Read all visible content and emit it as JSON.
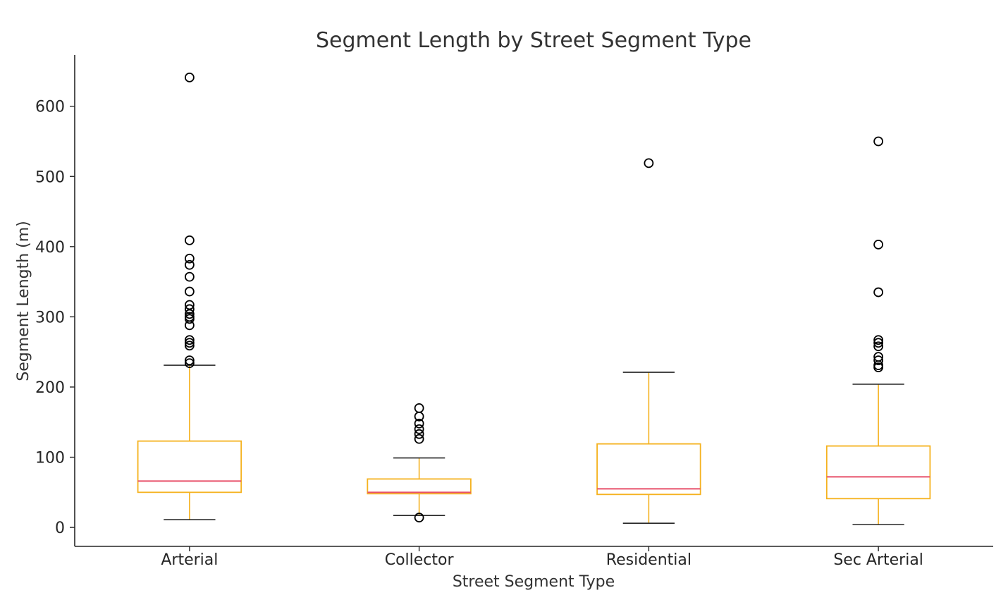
{
  "chart_data": {
    "type": "box",
    "title": "Segment Length by Street Segment Type",
    "xlabel": "Street Segment Type",
    "ylabel": "Segment Length (m)",
    "ylim": [
      -27,
      673
    ],
    "yticks": [
      0,
      100,
      200,
      300,
      400,
      500,
      600
    ],
    "grid": false,
    "colors": {
      "box": "#F5B21F",
      "median": "#E8506A",
      "cap": "#262626",
      "outlier": "#000000"
    },
    "categories": [
      "Arterial",
      "Collector",
      "Residential",
      "Sec Arterial"
    ],
    "boxes": [
      {
        "category": "Arterial",
        "whisker_low": 11,
        "q1": 50,
        "median": 66,
        "q3": 123,
        "whisker_high": 231,
        "outliers": [
          234,
          238,
          259,
          263,
          267,
          288,
          297,
          300,
          304,
          311,
          317,
          336,
          357,
          374,
          383,
          409,
          641
        ]
      },
      {
        "category": "Collector",
        "whisker_low": 17,
        "q1": 48,
        "median": 50,
        "q3": 69,
        "whisker_high": 99,
        "outliers": [
          14,
          126,
          133,
          140,
          148,
          158,
          170
        ]
      },
      {
        "category": "Residential",
        "whisker_low": 6,
        "q1": 47,
        "median": 55,
        "q3": 119,
        "whisker_high": 221,
        "outliers": [
          519
        ]
      },
      {
        "category": "Sec Arterial",
        "whisker_low": 4,
        "q1": 41,
        "median": 72,
        "q3": 116,
        "whisker_high": 204,
        "outliers": [
          228,
          231,
          238,
          243,
          258,
          263,
          267,
          335,
          403,
          550
        ]
      }
    ]
  }
}
